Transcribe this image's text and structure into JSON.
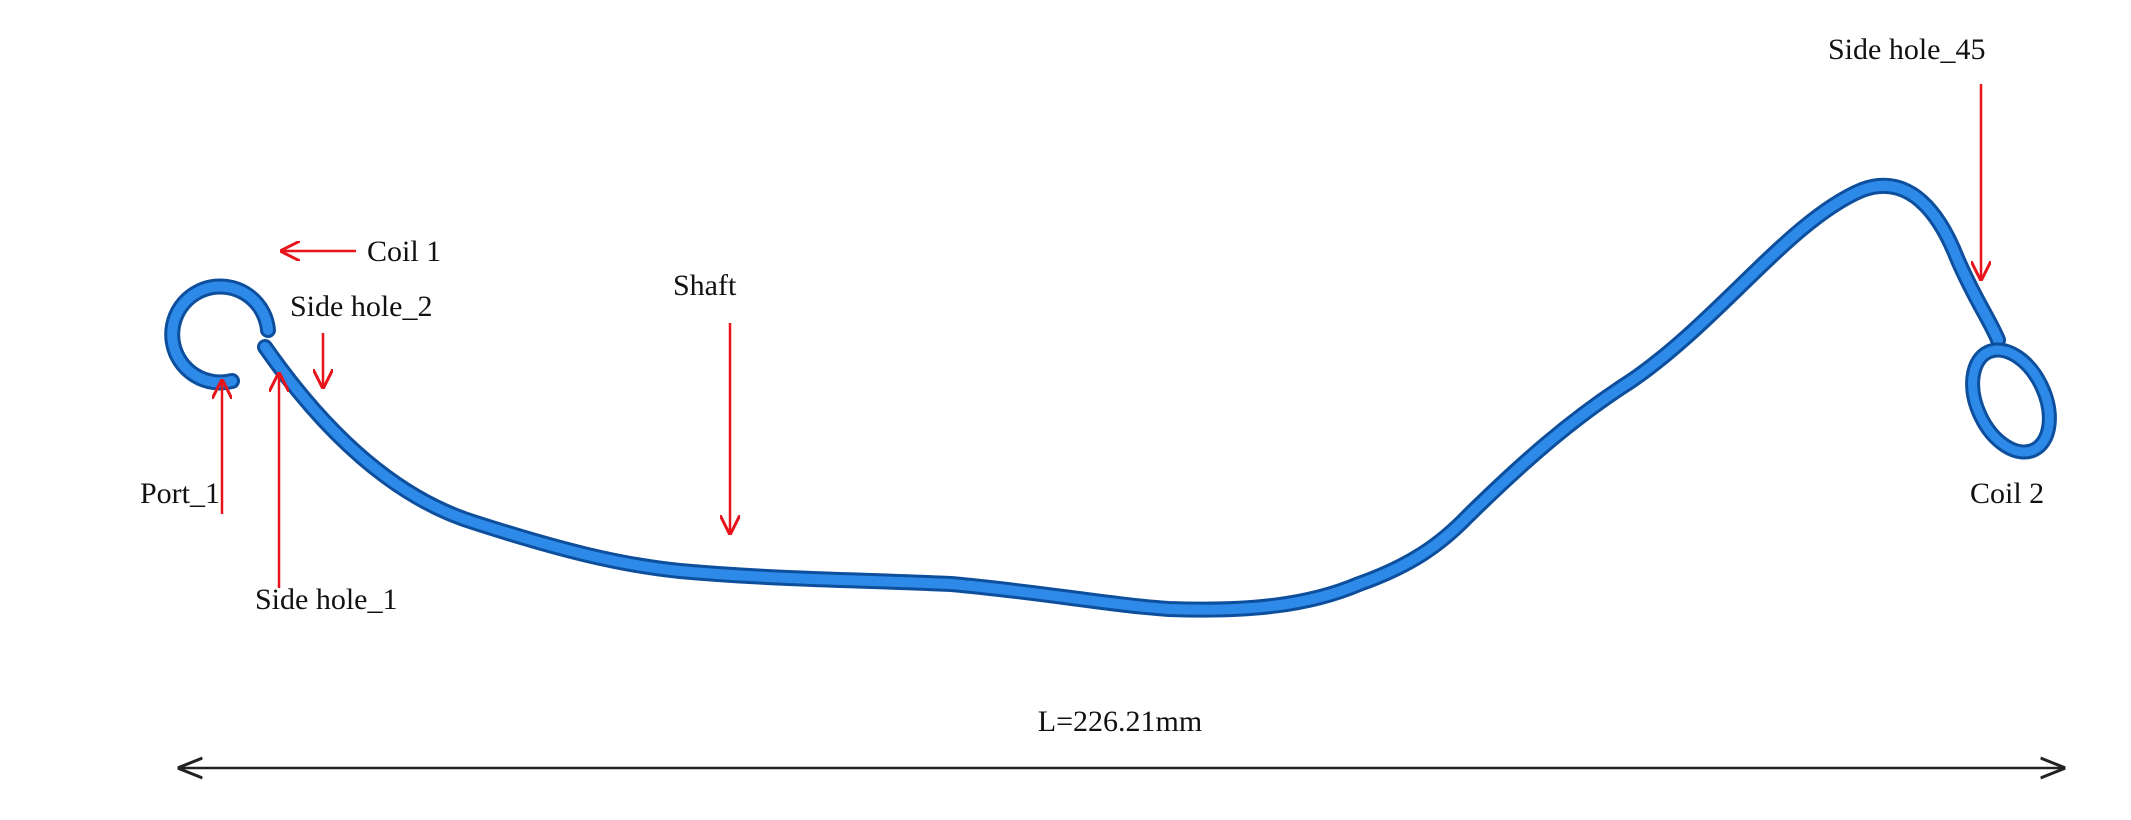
{
  "annotations": [
    {
      "label": "Coil 1"
    },
    {
      "label": "Side hole_2"
    },
    {
      "label": "Shaft"
    },
    {
      "label": "Side hole_45"
    },
    {
      "label": "Port_1"
    },
    {
      "label": "Side hole_1"
    },
    {
      "label": "Coil 2"
    }
  ],
  "dimension": {
    "label": "L=226.21mm"
  }
}
